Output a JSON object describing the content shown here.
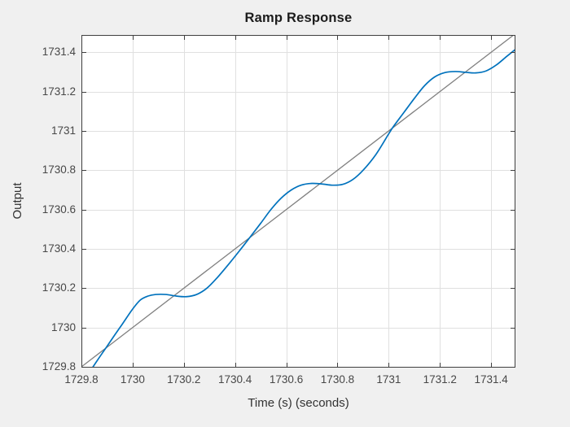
{
  "figure": {
    "background_color": "#f0f0f0",
    "axes_background_color": "#ffffff",
    "axes_border_color": "#3f3f3f",
    "grid_color": "#e0e0e0",
    "tick_label_color": "#474747",
    "label_color": "#333333",
    "title_color": "#1c1c1c"
  },
  "chart_data": {
    "type": "line",
    "title": "Ramp Response",
    "xlabel": "Time (s) (seconds)",
    "ylabel": "Output",
    "grid": true,
    "legend": "none",
    "xlim": [
      1729.8,
      1731.495
    ],
    "ylim": [
      1729.796,
      1731.488
    ],
    "x_ticks": [
      1729.8,
      1730,
      1730.2,
      1730.4,
      1730.6,
      1730.8,
      1731,
      1731.2,
      1731.4
    ],
    "x_tick_labels": [
      "1729.8",
      "1730",
      "1730.2",
      "1730.4",
      "1730.6",
      "1730.8",
      "1731",
      "1731.2",
      "1731.4"
    ],
    "y_ticks": [
      1729.8,
      1730,
      1730.2,
      1730.4,
      1730.6,
      1730.8,
      1731,
      1731.2,
      1731.4
    ],
    "y_tick_labels": [
      "1729.8",
      "1730",
      "1730.2",
      "1730.4",
      "1730.6",
      "1730.8",
      "1731",
      "1731.2",
      "1731.4"
    ],
    "series": [
      {
        "name": "ramp-reference",
        "color": "#808080",
        "line_width": 1.3,
        "smooth": false,
        "points": [
          [
            1729.8,
            1729.8
          ],
          [
            1731.495,
            1731.495
          ]
        ]
      },
      {
        "name": "ramp-response",
        "color": "#0072BD",
        "line_width": 1.7,
        "smooth": true,
        "points": [
          [
            1729.835,
            1729.78
          ],
          [
            1729.87,
            1729.848
          ],
          [
            1729.895,
            1729.895
          ],
          [
            1729.93,
            1729.962
          ],
          [
            1729.96,
            1730.018
          ],
          [
            1730.0,
            1730.094
          ],
          [
            1730.03,
            1730.14
          ],
          [
            1730.06,
            1730.16
          ],
          [
            1730.09,
            1730.168
          ],
          [
            1730.13,
            1730.168
          ],
          [
            1730.17,
            1730.16
          ],
          [
            1730.21,
            1730.157
          ],
          [
            1730.25,
            1730.168
          ],
          [
            1730.29,
            1730.2
          ],
          [
            1730.33,
            1730.253
          ],
          [
            1730.38,
            1730.33
          ],
          [
            1730.42,
            1730.395
          ],
          [
            1730.457,
            1730.457
          ],
          [
            1730.5,
            1730.53
          ],
          [
            1730.54,
            1730.6
          ],
          [
            1730.58,
            1730.658
          ],
          [
            1730.62,
            1730.7
          ],
          [
            1730.66,
            1730.725
          ],
          [
            1730.7,
            1730.733
          ],
          [
            1730.74,
            1730.73
          ],
          [
            1730.78,
            1730.724
          ],
          [
            1730.82,
            1730.728
          ],
          [
            1730.86,
            1730.753
          ],
          [
            1730.9,
            1730.8
          ],
          [
            1730.95,
            1730.88
          ],
          [
            1731.0,
            1730.985
          ],
          [
            1731.02,
            1731.025
          ],
          [
            1731.06,
            1731.095
          ],
          [
            1731.1,
            1731.165
          ],
          [
            1731.14,
            1731.23
          ],
          [
            1731.18,
            1731.275
          ],
          [
            1731.22,
            1731.297
          ],
          [
            1731.26,
            1731.302
          ],
          [
            1731.3,
            1731.298
          ],
          [
            1731.34,
            1731.295
          ],
          [
            1731.38,
            1731.305
          ],
          [
            1731.42,
            1731.335
          ],
          [
            1731.46,
            1731.378
          ],
          [
            1731.495,
            1731.415
          ]
        ]
      }
    ]
  }
}
